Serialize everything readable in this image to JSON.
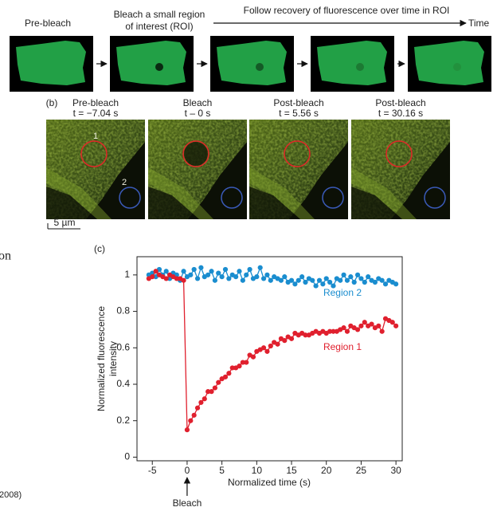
{
  "panel_a": {
    "step_labels": [
      [
        "Pre-bleach"
      ],
      [
        "Bleach a small region",
        "of interest (ROI)"
      ]
    ],
    "timeline_label": "Follow recovery of fluorescence over time in ROI",
    "time_label": "Time"
  },
  "panel_b": {
    "label": "(b)",
    "images": [
      {
        "title": "Pre-bleach",
        "time": "t = −7.04 s"
      },
      {
        "title": "Bleach",
        "time": "t – 0 s"
      },
      {
        "title": "Post-bleach",
        "time": "t = 5.56 s"
      },
      {
        "title": "Post-bleach",
        "time": "t = 30.16 s"
      }
    ],
    "roi_labels": [
      "1",
      "2"
    ],
    "scale_bar": "5 µm"
  },
  "side_texts": [
    "on",
    "2008)"
  ],
  "chart_data": {
    "type": "line",
    "label": "(c)",
    "xlabel": "Normalized time (s)",
    "ylabel": [
      "Normalized fluorescence",
      "intensity"
    ],
    "bleach_label": "Bleach",
    "x": [
      -5.5,
      -5,
      -4.5,
      -4,
      -3.5,
      -3,
      -2.5,
      -2,
      -1.5,
      -1,
      -0.5,
      0,
      0.5,
      1,
      1.5,
      2,
      2.5,
      3,
      3.5,
      4,
      4.5,
      5,
      5.5,
      6,
      6.5,
      7,
      7.5,
      8,
      8.5,
      9,
      9.5,
      10,
      10.5,
      11,
      11.5,
      12,
      12.5,
      13,
      13.5,
      14,
      14.5,
      15,
      15.5,
      16,
      16.5,
      17,
      17.5,
      18,
      18.5,
      19,
      19.5,
      20,
      20.5,
      21,
      21.5,
      22,
      22.5,
      23,
      23.5,
      24,
      24.5,
      25,
      25.5,
      26,
      26.5,
      27,
      27.5,
      28,
      28.5,
      29,
      29.5,
      30
    ],
    "series": [
      {
        "name": "Region 2",
        "color": "#1a8dcf",
        "values": [
          1.0,
          1.01,
          0.99,
          1.03,
          1.0,
          1.02,
          0.98,
          1.01,
          1.0,
          0.97,
          1.02,
          0.99,
          1.0,
          1.03,
          0.98,
          1.04,
          0.99,
          1.0,
          1.02,
          0.97,
          1.01,
          0.99,
          1.03,
          0.98,
          1.0,
          0.99,
          1.02,
          0.97,
          1.0,
          1.03,
          0.98,
          0.99,
          1.04,
          0.98,
          1.0,
          0.97,
          0.99,
          0.98,
          0.97,
          0.99,
          0.96,
          0.97,
          0.95,
          0.97,
          0.99,
          0.96,
          0.98,
          0.97,
          0.94,
          0.97,
          0.95,
          0.98,
          0.96,
          0.94,
          0.98,
          0.97,
          1.0,
          0.97,
          0.99,
          0.96,
          1.0,
          0.98,
          0.96,
          0.99,
          0.97,
          0.96,
          0.98,
          0.97,
          0.95,
          0.97,
          0.96,
          0.95
        ]
      },
      {
        "name": "Region 1",
        "color": "#e0202e",
        "values": [
          0.98,
          0.99,
          1.02,
          1.0,
          0.99,
          0.98,
          1.0,
          0.99,
          0.98,
          0.98,
          0.97,
          0.15,
          0.2,
          0.23,
          0.27,
          0.3,
          0.32,
          0.36,
          0.36,
          0.38,
          0.41,
          0.43,
          0.44,
          0.46,
          0.49,
          0.49,
          0.5,
          0.52,
          0.52,
          0.56,
          0.55,
          0.58,
          0.59,
          0.6,
          0.58,
          0.61,
          0.63,
          0.62,
          0.65,
          0.64,
          0.66,
          0.65,
          0.68,
          0.67,
          0.68,
          0.67,
          0.67,
          0.68,
          0.69,
          0.68,
          0.69,
          0.68,
          0.69,
          0.69,
          0.69,
          0.7,
          0.71,
          0.69,
          0.72,
          0.71,
          0.7,
          0.72,
          0.74,
          0.72,
          0.73,
          0.71,
          0.72,
          0.69,
          0.76,
          0.75,
          0.74,
          0.72
        ]
      }
    ],
    "xlim": [
      -7.2,
      30.9
    ],
    "ylim": [
      -0.02,
      1.1
    ],
    "xticks": [
      -5,
      0,
      5,
      10,
      15,
      20,
      25,
      30
    ],
    "yticks": [
      0,
      0.2,
      0.4,
      0.6,
      0.8,
      1
    ]
  }
}
